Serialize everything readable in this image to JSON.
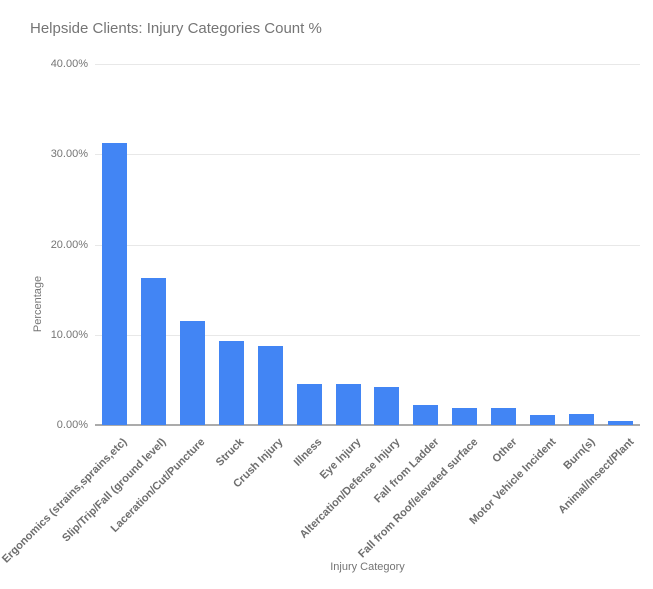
{
  "chart_data": {
    "type": "bar",
    "title": "Helpside Clients: Injury Categories Count %",
    "xlabel": "Injury Category",
    "ylabel": "Percentage",
    "ylim": [
      0,
      40
    ],
    "ytick_labels": [
      "0.00%",
      "10.00%",
      "20.00%",
      "30.00%",
      "40.00%"
    ],
    "grid": true,
    "legend": "none",
    "categories": [
      "Ergonomics (strains,sprains,etc)",
      "Slip/Trip/Fall (ground level)",
      "Laceration/Cut/Puncture",
      "Struck",
      "Crush Injury",
      "Illness",
      "Eye Injury",
      "Altercation/Defense Injury",
      "Fall from Ladder",
      "Fall from Roof/elevated surface",
      "Other",
      "Motor Vehicle Incident",
      "Burn(s)",
      "Animal/Insect/Plant"
    ],
    "values": [
      31.3,
      16.3,
      11.5,
      9.3,
      8.8,
      4.6,
      4.6,
      4.2,
      2.2,
      1.9,
      1.9,
      1.1,
      1.2,
      0.4
    ],
    "colors": {
      "bar": "#4285f4",
      "title_text": "#757575",
      "axis_text": "#757575",
      "category_text": "#6e6e6e",
      "gridline": "#e8e8e8",
      "axis_line": "#ababab",
      "background": "#ffffff"
    }
  }
}
